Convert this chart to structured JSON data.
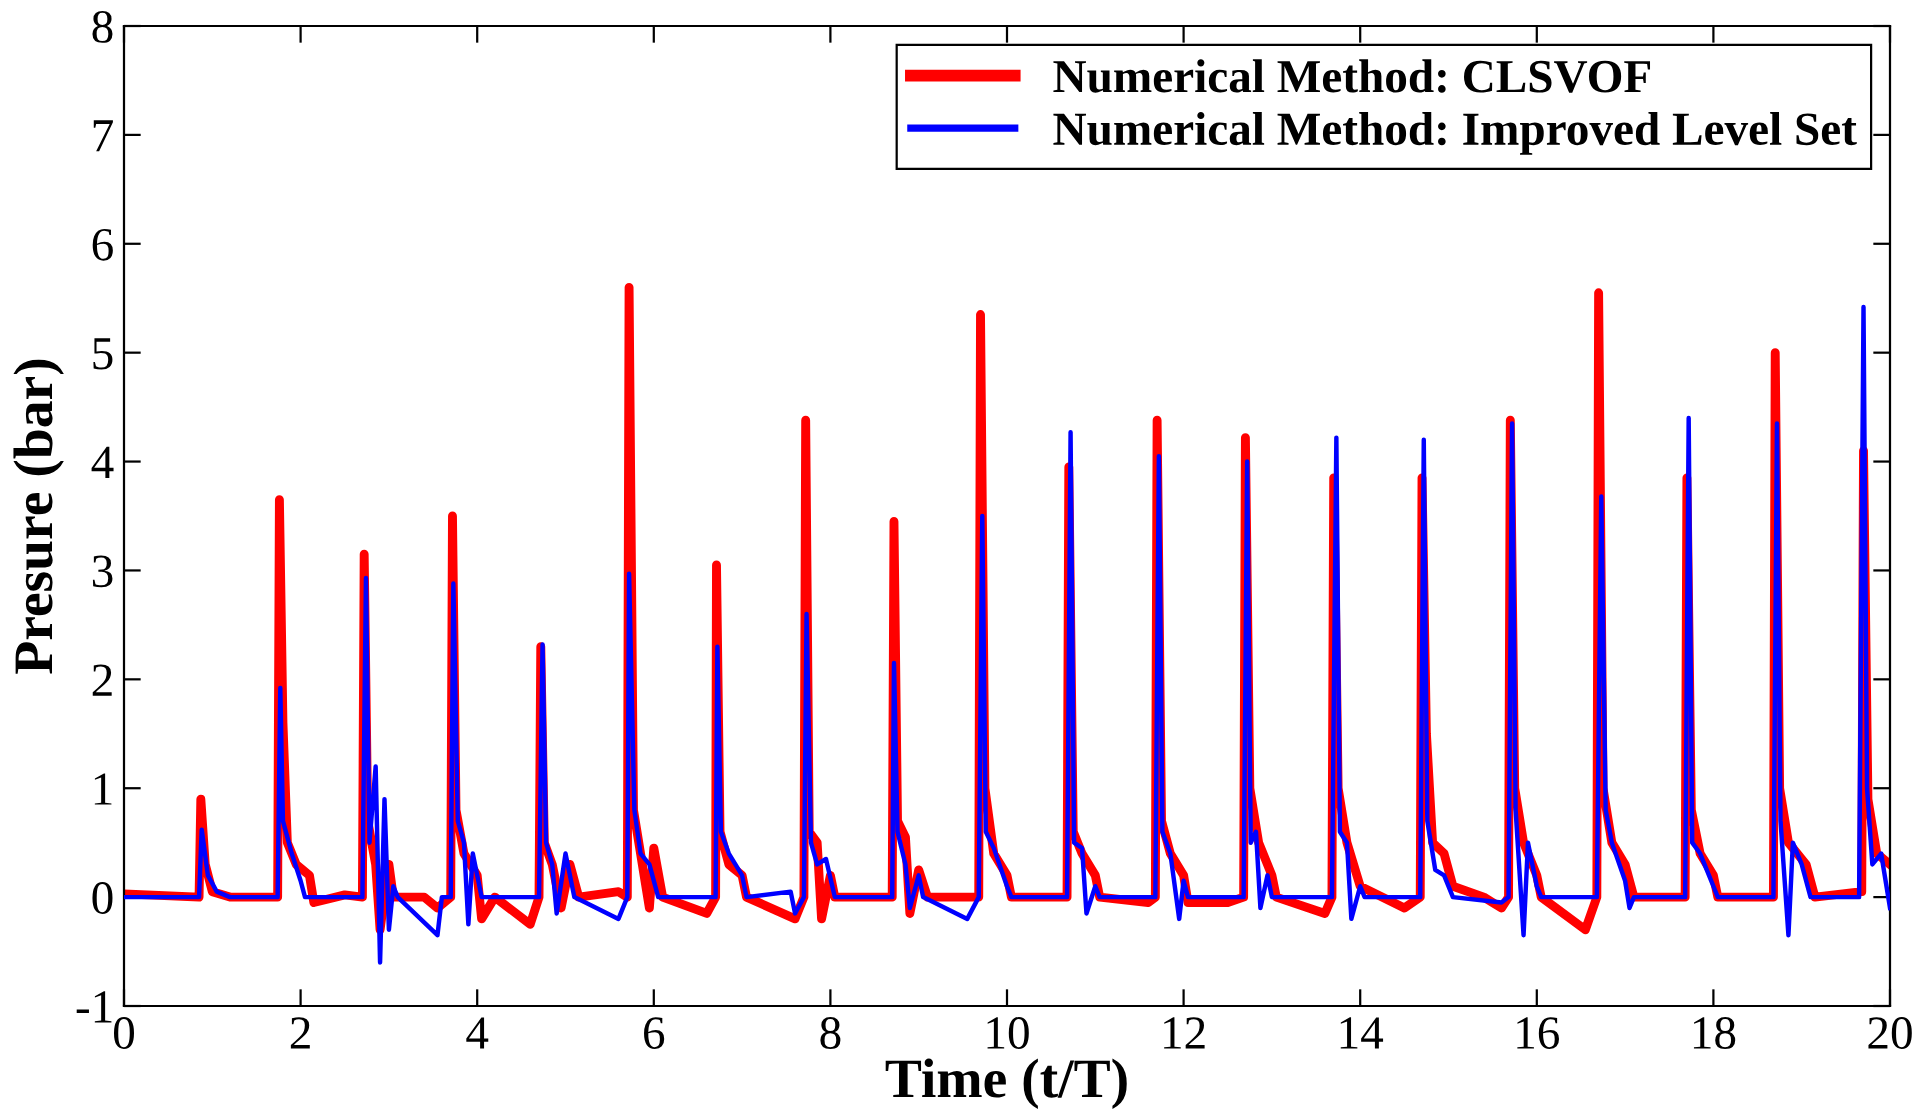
{
  "chart_data": {
    "type": "line",
    "xlabel": "Time (t/T)",
    "ylabel": "Presure (bar)",
    "xlim": [
      0,
      20
    ],
    "ylim": [
      -1,
      8
    ],
    "xticks": [
      0,
      2,
      4,
      6,
      8,
      10,
      12,
      14,
      16,
      18,
      20
    ],
    "yticks": [
      -1,
      0,
      1,
      2,
      3,
      4,
      5,
      6,
      7,
      8
    ],
    "grid": false,
    "legend": "top right",
    "marker": "none",
    "line_style": "solid",
    "series": [
      {
        "name": "Numerical Method: CLSVOF",
        "color": "#ff0000",
        "x": [
          0,
          0.85,
          0.87,
          0.92,
          1.0,
          1.2,
          1.74,
          1.76,
          1.8,
          1.85,
          1.95,
          2.1,
          2.15,
          2.5,
          2.7,
          2.72,
          2.76,
          2.85,
          2.9,
          3.0,
          3.05,
          3.4,
          3.55,
          3.7,
          3.72,
          3.76,
          3.85,
          4.0,
          4.05,
          4.2,
          4.6,
          4.7,
          4.72,
          4.76,
          4.85,
          4.95,
          5.05,
          5.15,
          5.6,
          5.7,
          5.72,
          5.77,
          5.85,
          5.95,
          6.0,
          6.1,
          6.6,
          6.7,
          6.71,
          6.75,
          6.85,
          7.0,
          7.05,
          7.6,
          7.7,
          7.72,
          7.76,
          7.85,
          7.9,
          8.0,
          8.05,
          8.7,
          8.72,
          8.76,
          8.85,
          8.9,
          9.0,
          9.1,
          9.68,
          9.7,
          9.75,
          9.85,
          10.0,
          10.05,
          10.68,
          10.7,
          10.75,
          10.85,
          11.0,
          11.05,
          11.6,
          11.68,
          11.7,
          11.75,
          11.85,
          12.0,
          12.05,
          12.5,
          12.68,
          12.7,
          12.75,
          12.85,
          13.0,
          13.05,
          13.6,
          13.68,
          13.7,
          13.75,
          13.85,
          14.0,
          14.5,
          14.68,
          14.7,
          14.75,
          14.82,
          14.95,
          15.05,
          15.4,
          15.6,
          15.68,
          15.7,
          15.75,
          15.85,
          16.0,
          16.05,
          16.55,
          16.68,
          16.7,
          16.75,
          16.85,
          17.0,
          17.1,
          17.68,
          17.7,
          17.75,
          17.85,
          18.0,
          18.05,
          18.68,
          18.7,
          18.75,
          18.85,
          19.05,
          19.15,
          19.68,
          19.7,
          19.75,
          19.85,
          20.0
        ],
        "values": [
          0.03,
          0.0,
          0.9,
          0.3,
          0.05,
          0.0,
          0.0,
          3.65,
          1.6,
          0.5,
          0.3,
          0.2,
          -0.05,
          0.02,
          0.0,
          3.15,
          0.7,
          0.3,
          -0.3,
          0.3,
          0.0,
          0.0,
          -0.1,
          0.0,
          3.5,
          0.8,
          0.4,
          0.2,
          -0.2,
          0.0,
          -0.25,
          0.0,
          2.3,
          0.5,
          0.3,
          -0.1,
          0.3,
          0.0,
          0.05,
          0.0,
          5.6,
          0.8,
          0.4,
          -0.1,
          0.45,
          0.0,
          -0.15,
          0.0,
          3.05,
          0.6,
          0.3,
          0.2,
          0.0,
          -0.2,
          0.0,
          4.38,
          0.6,
          0.5,
          -0.2,
          0.2,
          0.0,
          0.0,
          3.45,
          0.7,
          0.55,
          -0.15,
          0.25,
          0.0,
          0.0,
          5.35,
          1.0,
          0.4,
          0.2,
          0.0,
          0.0,
          3.95,
          0.6,
          0.4,
          0.2,
          0.0,
          -0.05,
          0.0,
          4.38,
          0.7,
          0.4,
          0.2,
          -0.05,
          -0.05,
          0.0,
          4.22,
          1.0,
          0.5,
          0.2,
          0.0,
          -0.15,
          0.0,
          3.85,
          1.0,
          0.5,
          0.1,
          -0.1,
          0.0,
          3.85,
          1.5,
          0.5,
          0.4,
          0.1,
          0.0,
          -0.1,
          0.0,
          4.38,
          1.0,
          0.5,
          0.2,
          0.0,
          -0.3,
          0.0,
          5.55,
          1.0,
          0.5,
          0.3,
          0.0,
          0.0,
          3.85,
          0.8,
          0.4,
          0.2,
          0.0,
          0.0,
          5.0,
          1.0,
          0.5,
          0.3,
          0.0,
          0.05,
          4.1,
          0.9,
          0.4,
          0.3
        ]
      },
      {
        "name": "Numerical Method: Improved Level Set",
        "color": "#0000ff",
        "x": [
          0,
          0.85,
          0.88,
          0.95,
          1.05,
          1.2,
          1.74,
          1.77,
          1.8,
          1.9,
          2.0,
          2.05,
          2.7,
          2.74,
          2.78,
          2.85,
          2.9,
          2.95,
          3.0,
          3.05,
          3.1,
          3.55,
          3.6,
          3.7,
          3.73,
          3.78,
          3.85,
          3.9,
          3.95,
          4.05,
          4.7,
          4.74,
          4.78,
          4.85,
          4.9,
          5.0,
          5.1,
          5.6,
          5.7,
          5.72,
          5.78,
          5.85,
          5.95,
          6.05,
          6.7,
          6.72,
          6.76,
          6.85,
          7.0,
          7.05,
          7.55,
          7.6,
          7.7,
          7.73,
          7.78,
          7.85,
          7.95,
          8.05,
          8.7,
          8.72,
          8.76,
          8.85,
          8.9,
          9.0,
          9.05,
          9.55,
          9.68,
          9.72,
          9.76,
          9.85,
          10.0,
          10.05,
          10.68,
          10.72,
          10.76,
          10.85,
          10.9,
          11.0,
          11.05,
          11.68,
          11.72,
          11.76,
          11.85,
          11.95,
          12.0,
          12.05,
          12.68,
          12.72,
          12.76,
          12.82,
          12.87,
          12.95,
          13.0,
          13.68,
          13.73,
          13.77,
          13.85,
          13.9,
          14.0,
          14.05,
          14.68,
          14.72,
          14.76,
          14.85,
          14.95,
          15.05,
          15.6,
          15.68,
          15.72,
          15.76,
          15.85,
          15.9,
          16.0,
          16.05,
          16.68,
          16.73,
          16.78,
          16.85,
          17.0,
          17.05,
          17.1,
          17.68,
          17.72,
          17.76,
          17.85,
          18.0,
          18.05,
          18.68,
          18.72,
          18.76,
          18.85,
          18.9,
          19.0,
          19.1,
          19.65,
          19.7,
          19.74,
          19.8,
          19.9,
          20.0
        ],
        "values": [
          0.0,
          0.0,
          0.62,
          0.2,
          0.05,
          0.0,
          0.0,
          1.92,
          0.7,
          0.4,
          0.15,
          0.0,
          0.0,
          2.93,
          0.5,
          1.2,
          -0.6,
          0.9,
          -0.3,
          0.1,
          0.0,
          -0.35,
          0.0,
          0.0,
          2.88,
          0.7,
          0.5,
          -0.25,
          0.4,
          0.0,
          0.0,
          2.32,
          0.5,
          0.3,
          -0.15,
          0.4,
          0.0,
          -0.2,
          0.0,
          2.97,
          0.8,
          0.4,
          0.3,
          0.0,
          0.0,
          2.3,
          0.6,
          0.4,
          0.2,
          0.0,
          0.05,
          -0.15,
          0.0,
          2.6,
          0.5,
          0.3,
          0.35,
          0.0,
          0.0,
          2.15,
          0.6,
          0.3,
          -0.1,
          0.2,
          0.0,
          -0.2,
          0.0,
          3.5,
          0.6,
          0.45,
          0.1,
          0.0,
          0.0,
          4.27,
          0.5,
          0.45,
          -0.15,
          0.1,
          0.0,
          0.0,
          4.05,
          0.6,
          0.4,
          -0.2,
          0.15,
          0.0,
          0.0,
          4.0,
          0.5,
          0.6,
          -0.1,
          0.2,
          0.0,
          0.0,
          4.22,
          0.6,
          0.5,
          -0.2,
          0.1,
          0.0,
          0.0,
          4.2,
          0.7,
          0.25,
          0.2,
          0.0,
          -0.05,
          0.0,
          4.35,
          0.8,
          -0.35,
          0.5,
          0.1,
          0.0,
          0.0,
          3.68,
          0.8,
          0.5,
          0.15,
          -0.1,
          0.0,
          0.0,
          4.4,
          0.5,
          0.4,
          0.1,
          0.0,
          0.0,
          4.35,
          0.7,
          -0.35,
          0.5,
          0.3,
          0.0,
          0.0,
          5.42,
          1.0,
          0.3,
          0.4,
          -0.1
        ]
      }
    ]
  }
}
